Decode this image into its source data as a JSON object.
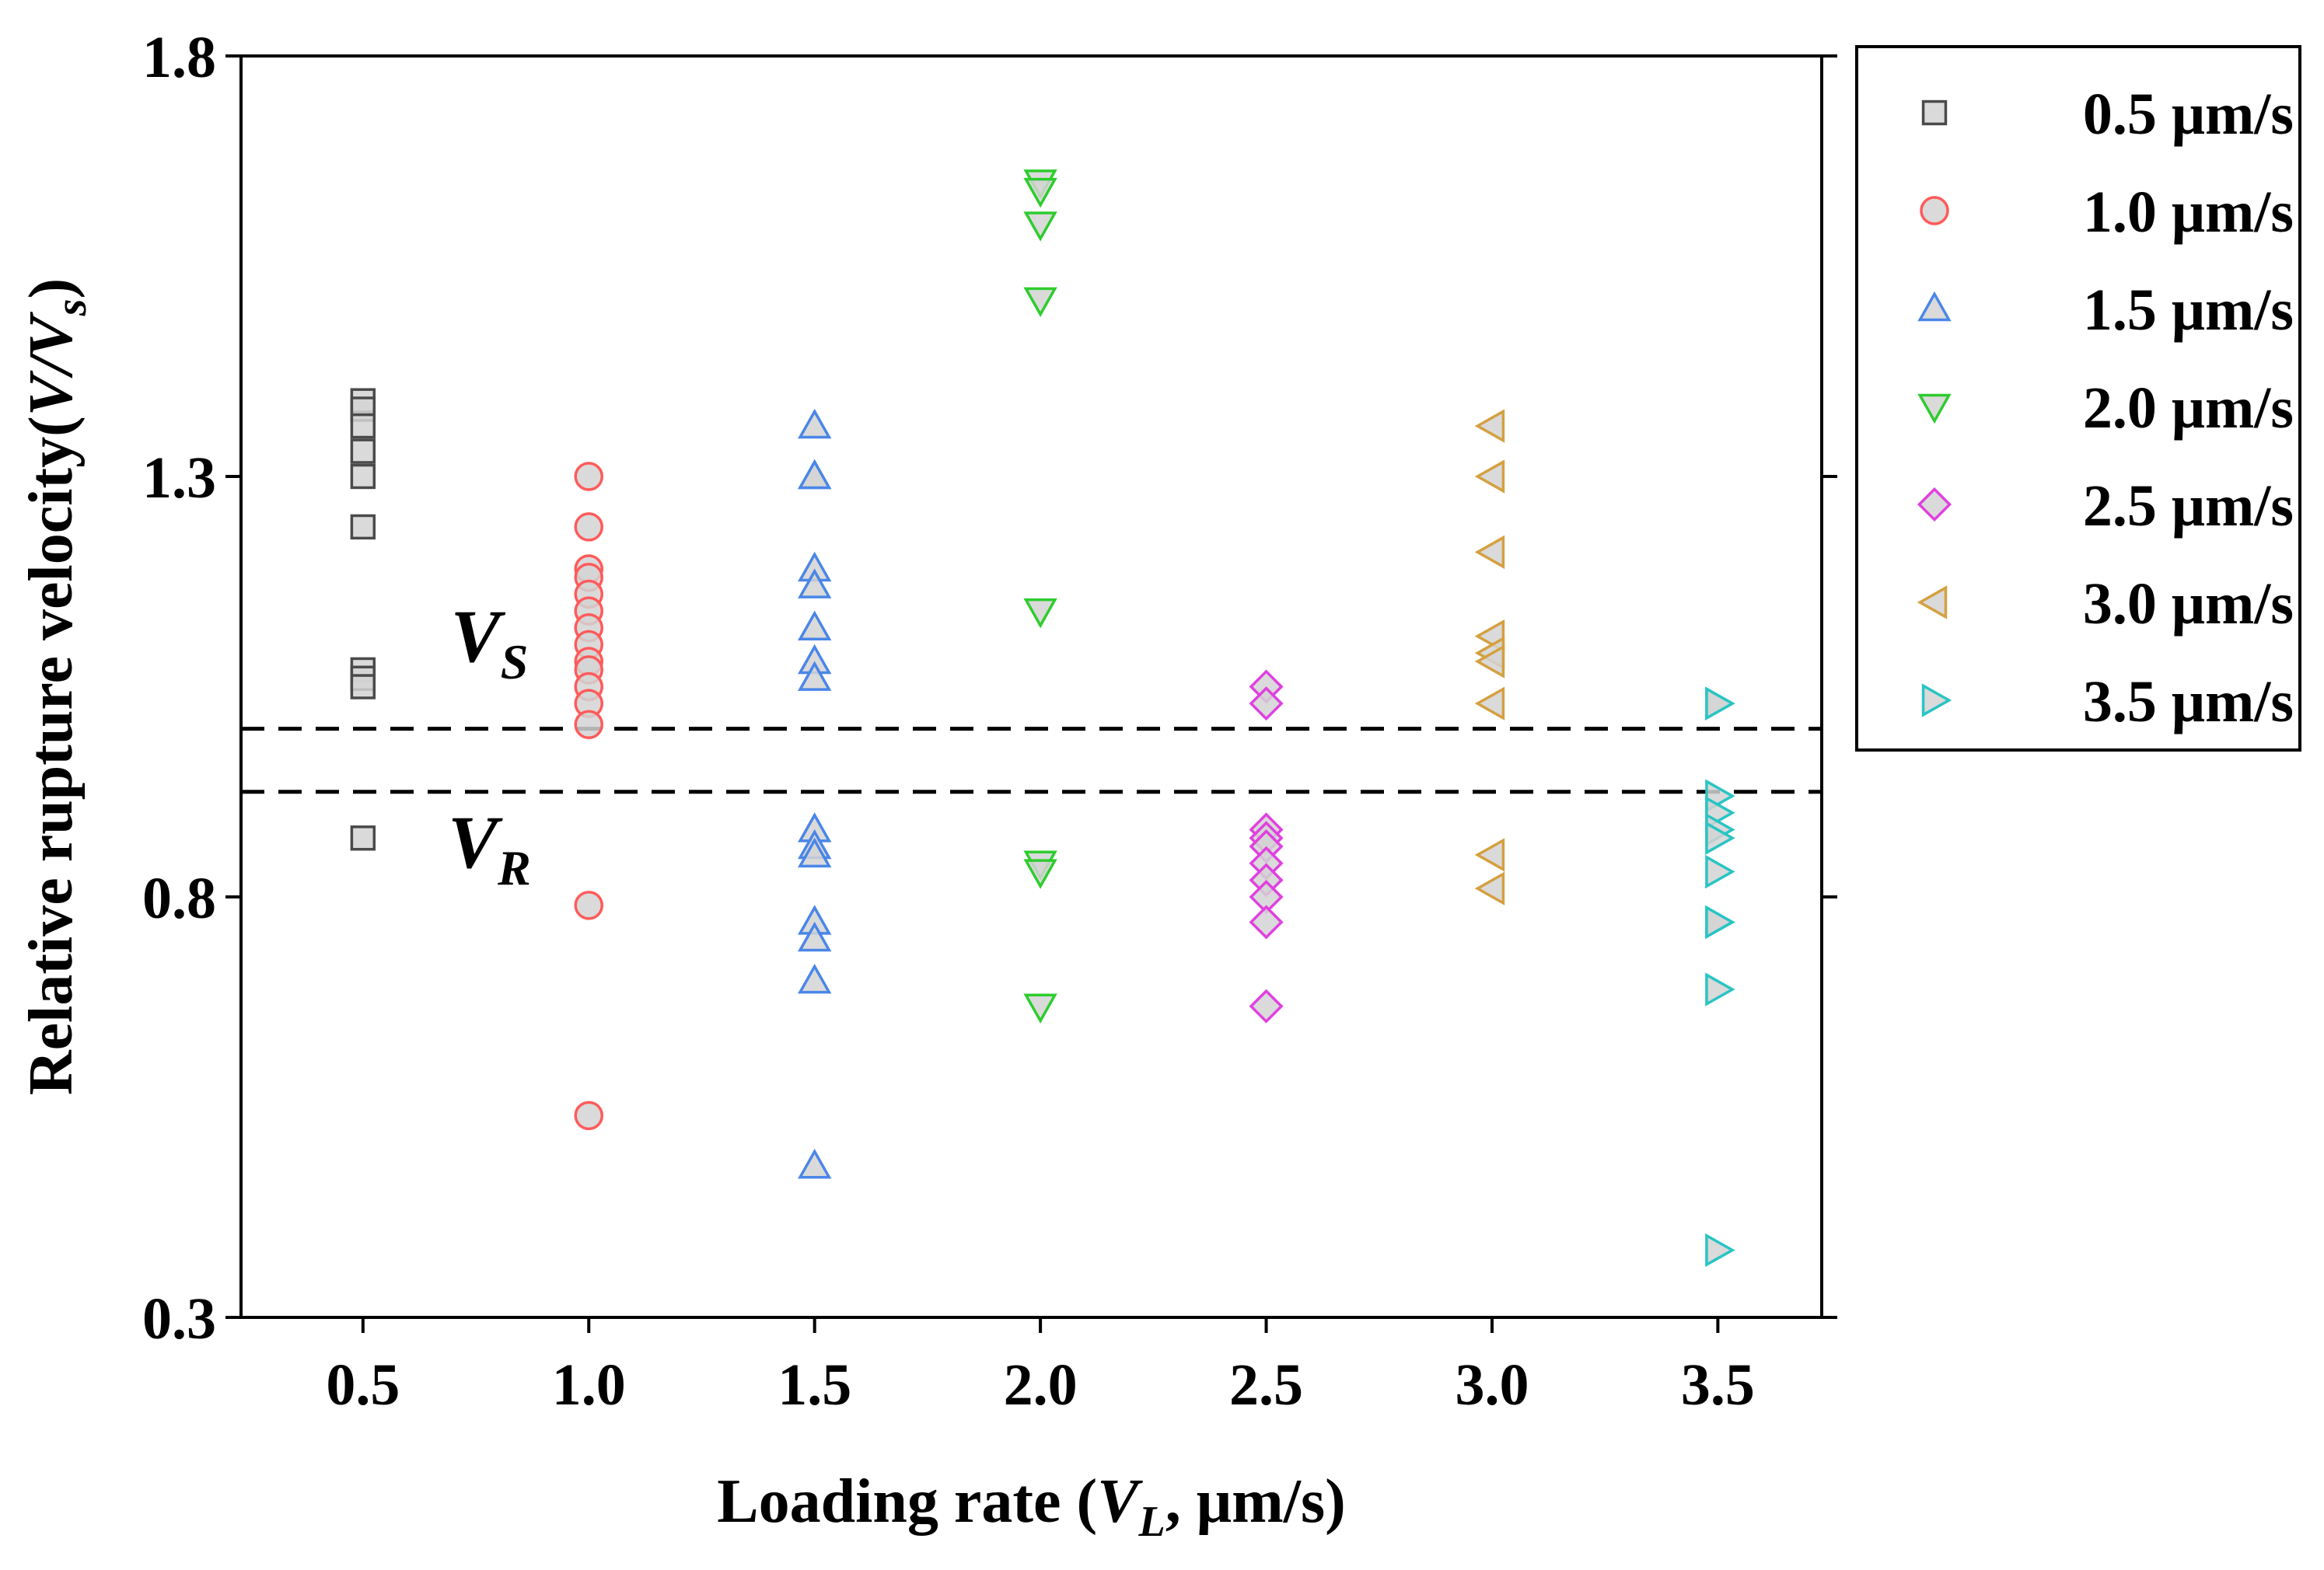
{
  "chart_data": {
    "type": "scatter",
    "title": "",
    "xlabel": {
      "main": "Loading rate (",
      "var": "V",
      "sub": "L",
      "tail": ", μm/s)"
    },
    "ylabel": {
      "main": "Relative rupture velocity(",
      "var1": "V",
      "slash": "/",
      "var2": "V",
      "sub": "s",
      "tail": ")"
    },
    "xlim": [
      0.23,
      3.73
    ],
    "ylim": [
      0.3,
      1.8
    ],
    "xticks": [
      {
        "value": 0.5,
        "label": "0.5"
      },
      {
        "value": 1.0,
        "label": "1.0"
      },
      {
        "value": 1.5,
        "label": "1.5"
      },
      {
        "value": 2.0,
        "label": "2.0"
      },
      {
        "value": 2.5,
        "label": "2.5"
      },
      {
        "value": 3.0,
        "label": "3.0"
      },
      {
        "value": 3.5,
        "label": "3.5"
      }
    ],
    "yticks": [
      {
        "value": 0.3,
        "label": "0.3"
      },
      {
        "value": 0.8,
        "label": "0.8"
      },
      {
        "value": 1.3,
        "label": "1.3"
      },
      {
        "value": 1.8,
        "label": "1.8"
      }
    ],
    "grid": false,
    "legend_position": "right, outside top",
    "reference_lines": [
      {
        "name": "V_S",
        "y": 1.0,
        "style": "dashed",
        "label": {
          "var": "V",
          "sub": "S",
          "x": 0.78,
          "y": 1.08
        }
      },
      {
        "name": "V_R",
        "y": 0.925,
        "style": "dashed",
        "label": {
          "var": "V",
          "sub": "R",
          "x": 0.78,
          "y": 0.835
        }
      }
    ],
    "series": [
      {
        "name": "0.5 μm/s",
        "marker": "square",
        "color": "#4a4a4a",
        "x": 0.5,
        "values": [
          1.39,
          1.38,
          1.36,
          1.33,
          1.3,
          1.24,
          1.07,
          1.06,
          1.05,
          0.87
        ]
      },
      {
        "name": "1.0 μm/s",
        "marker": "circle",
        "color": "#ff5a5a",
        "x": 1.0,
        "values": [
          1.3,
          1.24,
          1.19,
          1.18,
          1.16,
          1.14,
          1.12,
          1.1,
          1.08,
          1.07,
          1.05,
          1.03,
          1.005,
          0.79,
          0.54
        ]
      },
      {
        "name": "1.5 μm/s",
        "marker": "triangle-up",
        "color": "#4a86e8",
        "x": 1.5,
        "values": [
          1.36,
          1.3,
          1.3,
          1.19,
          1.17,
          1.12,
          1.08,
          1.06,
          0.88,
          0.86,
          0.85,
          0.77,
          0.75,
          0.7,
          0.48
        ]
      },
      {
        "name": "2.0 μm/s",
        "marker": "triangle-down",
        "color": "#2ecc2e",
        "x": 2.0,
        "values": [
          1.65,
          1.64,
          1.6,
          1.51,
          1.14,
          0.84,
          0.83,
          0.67
        ]
      },
      {
        "name": "2.5 μm/s",
        "marker": "diamond",
        "color": "#e040e0",
        "x": 2.5,
        "values": [
          1.05,
          1.03,
          0.88,
          0.87,
          0.86,
          0.84,
          0.82,
          0.8,
          0.77,
          0.67
        ]
      },
      {
        "name": "3.0 μm/s",
        "marker": "triangle-left",
        "color": "#d4a040",
        "x": 3.0,
        "values": [
          1.36,
          1.3,
          1.21,
          1.11,
          1.09,
          1.08,
          1.03,
          0.85,
          0.81
        ]
      },
      {
        "name": "3.5 μm/s",
        "marker": "triangle-right",
        "color": "#29c4c4",
        "x": 3.5,
        "values": [
          1.03,
          1.03,
          0.92,
          0.9,
          0.88,
          0.87,
          0.83,
          0.77,
          0.77,
          0.69,
          0.38
        ]
      }
    ]
  }
}
